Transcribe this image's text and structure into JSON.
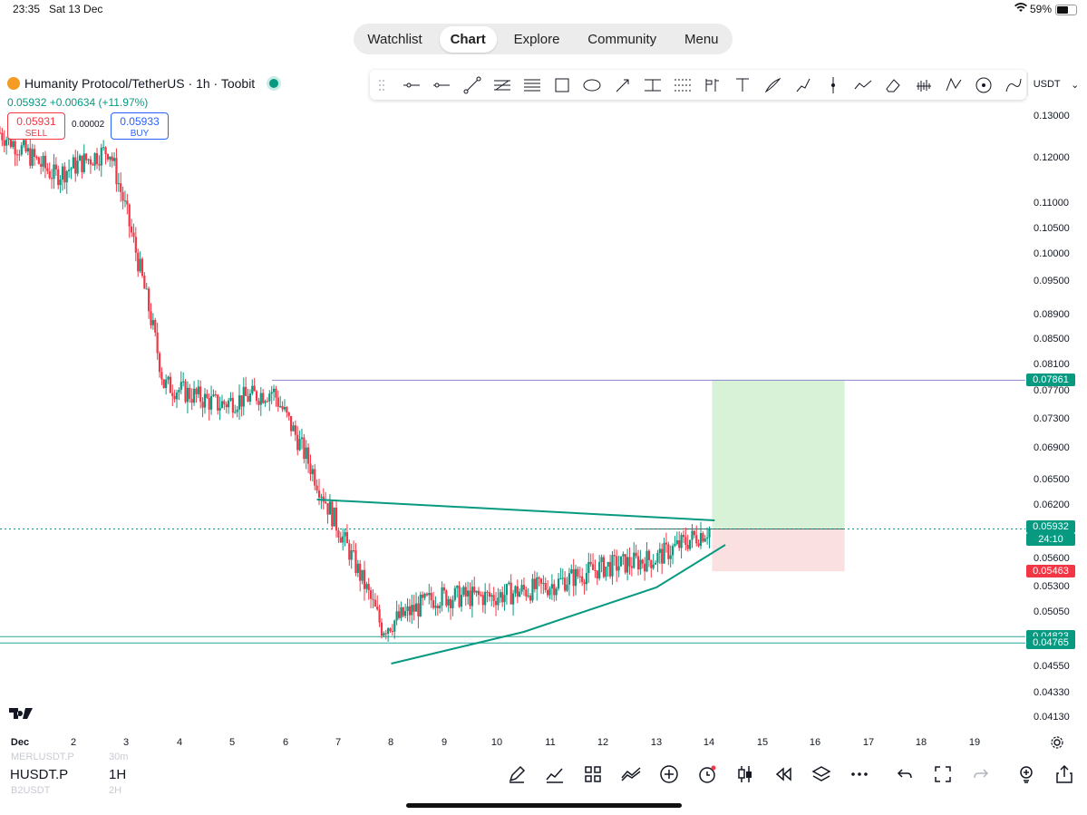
{
  "status_bar": {
    "time": "23:35",
    "date": "Sat 13 Dec",
    "battery": "59%"
  },
  "nav": {
    "tabs": [
      "Watchlist",
      "Chart",
      "Explore",
      "Community",
      "Menu"
    ],
    "active": "Chart"
  },
  "symbol": {
    "title": "Humanity Protocol/TetherUS · 1h · Toobit",
    "last": "0.05932",
    "change": "+0.00634",
    "change_pct": "(+11.97%)",
    "sell_price": "0.05931",
    "sell_label": "SELL",
    "spread": "0.00002",
    "buy_price": "0.05933",
    "buy_label": "BUY"
  },
  "toolbar": {
    "currency": "USDT",
    "tools": [
      "grip-icon",
      "horizontal-ray-icon",
      "horizontal-line-icon",
      "trend-line-icon",
      "fib-retracement-icon",
      "parallel-channel-icon",
      "rectangle-icon",
      "ellipse-icon",
      "arrow-icon",
      "price-range-icon",
      "date-range-icon",
      "long-position-icon",
      "text-icon",
      "brush-icon",
      "path-icon",
      "vertical-line-icon",
      "polyline-icon",
      "eraser-icon",
      "volume-profile-icon",
      "pattern-icon",
      "circle-target-icon",
      "curve-icon"
    ]
  },
  "price_axis": {
    "ticks": [
      "0.13000",
      "0.12000",
      "0.11000",
      "0.10500",
      "0.10000",
      "0.09500",
      "0.08900",
      "0.08500",
      "0.08100",
      "0.07700",
      "0.07300",
      "0.06900",
      "0.06500",
      "0.06200",
      "0.05600",
      "0.05300",
      "0.05050",
      "0.04550",
      "0.04330",
      "0.04130"
    ],
    "labels": [
      {
        "text": "0.07861",
        "color": "#089981"
      },
      {
        "text": "0.05932",
        "color": "#089981"
      },
      {
        "text": "24:10",
        "color": "#089981"
      },
      {
        "text": "0.05463",
        "color": "#f23645"
      },
      {
        "text": "0.04823",
        "color": "#089981"
      },
      {
        "text": "0.04765",
        "color": "#089981"
      }
    ]
  },
  "time_axis": {
    "ticks": [
      "Dec",
      "2",
      "3",
      "4",
      "5",
      "6",
      "7",
      "8",
      "9",
      "10",
      "11",
      "12",
      "13",
      "14",
      "15",
      "16",
      "17",
      "18",
      "19"
    ]
  },
  "chart_data": {
    "type": "candlestick",
    "symbol": "Humanity Protocol/TetherUS",
    "interval": "1h",
    "x": [
      "Dec 1",
      "Dec 2",
      "Dec 3",
      "Dec 4",
      "Dec 5",
      "Dec 6",
      "Dec 7",
      "Dec 8",
      "Dec 9",
      "Dec 10",
      "Dec 11",
      "Dec 12",
      "Dec 13",
      "Dec 14"
    ],
    "close_path": [
      0.126,
      0.116,
      0.122,
      0.078,
      0.075,
      0.077,
      0.062,
      0.049,
      0.052,
      0.052,
      0.053,
      0.055,
      0.056,
      0.0593
    ],
    "horizontal_levels": [
      0.07861,
      0.04823,
      0.04765
    ],
    "position": {
      "entry": 0.0593,
      "target": 0.07861,
      "stop": 0.05463
    },
    "colors": {
      "up": "#089981",
      "down": "#f23645",
      "trendline": "#089981"
    }
  },
  "bottom": {
    "symbol": "HUSDT.P",
    "interval": "1H",
    "ghost_above": {
      "symbol": "MERLUSDT.P",
      "interval": "30m"
    },
    "ghost_below": {
      "symbol": "B2USDT",
      "interval": "2H"
    },
    "icons": [
      "draw-icon",
      "indicators-icon",
      "templates-icon",
      "compare-icon",
      "add-icon",
      "alert-icon",
      "candle-type-icon",
      "replay-icon",
      "layers-icon",
      "more-icon",
      "undo-icon",
      "fullscreen-icon",
      "redo-icon",
      "ideas-icon",
      "share-icon"
    ]
  },
  "logo": "TV"
}
